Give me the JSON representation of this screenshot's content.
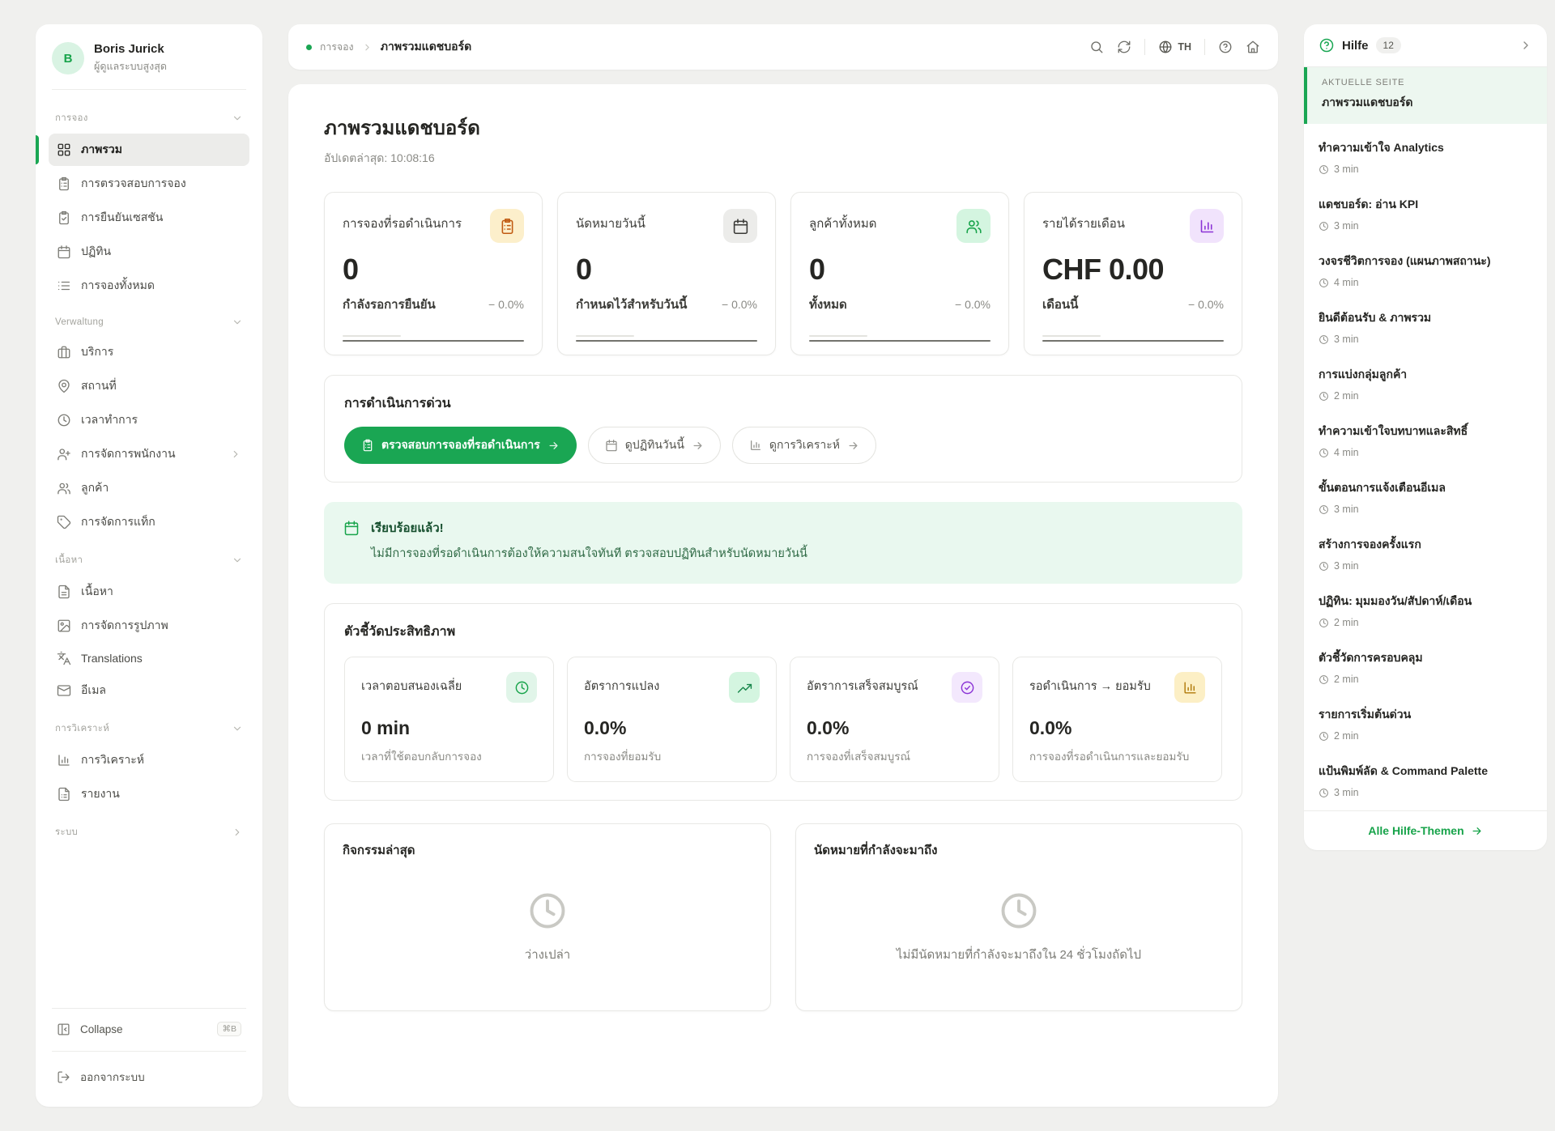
{
  "colors": {
    "accent": "#1aa653",
    "page_bg": "#f0f0ee",
    "banner_bg": "#e9f8ef",
    "banner_text": "#2f6a45"
  },
  "sidebar": {
    "user": {
      "initial": "B",
      "name": "Boris Jurick",
      "role": "ผู้ดูแลระบบสูงสุด"
    },
    "sections": [
      {
        "label": "การจอง",
        "chevron": "down",
        "items": [
          {
            "icon": "grid",
            "label": "ภาพรวม",
            "active": true
          },
          {
            "icon": "clipboard-list",
            "label": "การตรวจสอบการจอง"
          },
          {
            "icon": "clipboard-check",
            "label": "การยืนยันเซสชัน"
          },
          {
            "icon": "calendar",
            "label": "ปฏิทิน"
          },
          {
            "icon": "list",
            "label": "การจองทั้งหมด"
          }
        ]
      },
      {
        "label": "Verwaltung",
        "chevron": "down",
        "items": [
          {
            "icon": "briefcase",
            "label": "บริการ"
          },
          {
            "icon": "map-pin",
            "label": "สถานที่"
          },
          {
            "icon": "clock",
            "label": "เวลาทำการ"
          },
          {
            "icon": "user-plus",
            "label": "การจัดการพนักงาน",
            "trailing": "chevron-right"
          },
          {
            "icon": "users",
            "label": "ลูกค้า"
          },
          {
            "icon": "tag",
            "label": "การจัดการแท็ก"
          }
        ]
      },
      {
        "label": "เนื้อหา",
        "chevron": "down",
        "items": [
          {
            "icon": "file-text",
            "label": "เนื้อหา"
          },
          {
            "icon": "image",
            "label": "การจัดการรูปภาพ"
          },
          {
            "icon": "languages",
            "label": "Translations"
          },
          {
            "icon": "mail",
            "label": "อีเมล"
          }
        ]
      },
      {
        "label": "การวิเคราะห์",
        "chevron": "down",
        "items": [
          {
            "icon": "bar-chart",
            "label": "การวิเคราะห์"
          },
          {
            "icon": "file-report",
            "label": "รายงาน"
          }
        ]
      },
      {
        "label": "ระบบ",
        "chevron": "right",
        "items": []
      }
    ],
    "collapse_label": "Collapse",
    "collapse_shortcut": "⌘B",
    "logout_label": "ออกจากระบบ"
  },
  "topbar": {
    "breadcrumb_root": "การจอง",
    "breadcrumb_current": "ภาพรวมแดชบอร์ด",
    "language": "TH"
  },
  "page": {
    "title": "ภาพรวมแดชบอร์ด",
    "updated": "อัปเดตล่าสุด: 10:08:16"
  },
  "stats": {
    "cards": [
      {
        "title": "การจองที่รอดำเนินการ",
        "icon": "clipboard-list",
        "icon_bg": "#fcefcb",
        "icon_color": "#c05a11",
        "value": "0",
        "foot_label": "กำลังรอการยืนยัน",
        "delta": "− 0.0%"
      },
      {
        "title": "นัดหมายวันนี้",
        "icon": "calendar",
        "icon_bg": "#ececea",
        "icon_color": "#3a3a37",
        "value": "0",
        "foot_label": "กำหนดไว้สำหรับวันนี้",
        "delta": "− 0.0%"
      },
      {
        "title": "ลูกค้าทั้งหมด",
        "icon": "users",
        "icon_bg": "#d4f5e0",
        "icon_color": "#17a34a",
        "value": "0",
        "foot_label": "ทั้งหมด",
        "delta": "− 0.0%"
      },
      {
        "title": "รายได้รายเดือน",
        "icon": "bar-chart",
        "icon_bg": "#f1e3fc",
        "icon_color": "#8b33d6",
        "value": "CHF 0.00",
        "foot_label": "เดือนนี้",
        "delta": "− 0.0%"
      }
    ]
  },
  "quick_actions": {
    "title": "การดำเนินการด่วน",
    "primary": {
      "icon": "clipboard-list",
      "label": "ตรวจสอบการจองที่รอดำเนินการ"
    },
    "secondary": [
      {
        "icon": "calendar",
        "label": "ดูปฏิทินวันนี้"
      },
      {
        "icon": "bar-chart",
        "label": "ดูการวิเคราะห์"
      }
    ]
  },
  "banner": {
    "title": "เรียบร้อยแล้ว!",
    "text": "ไม่มีการจองที่รอดำเนินการต้องให้ความสนใจทันที ตรวจสอบปฏิทินสำหรับนัดหมายวันนี้"
  },
  "metrics": {
    "title": "ตัวชี้วัดประสิทธิภาพ",
    "cards": [
      {
        "title": "เวลาตอบสนองเฉลี่ย",
        "icon": "clock",
        "icon_bg": "#e1f5e9",
        "icon_color": "#17a34a",
        "value": "0 min",
        "sub": "เวลาที่ใช้ตอบกลับการจอง"
      },
      {
        "title": "อัตราการแปลง",
        "icon": "trending-up",
        "icon_bg": "#d4f5e0",
        "icon_color": "#17864a",
        "value": "0.0%",
        "sub": "การจองที่ยอมรับ"
      },
      {
        "title": "อัตราการเสร็จสมบูรณ์",
        "icon": "check-circle",
        "icon_bg": "#f3e8fd",
        "icon_color": "#8b33d6",
        "value": "0.0%",
        "sub": "การจองที่เสร็จสมบูรณ์"
      },
      {
        "title": "รอดำเนินการ → ยอมรับ",
        "icon": "bar-chart",
        "icon_bg": "#fcefc5",
        "icon_color": "#b07909",
        "value": "0.0%",
        "sub": "การจองที่รอดำเนินการและยอมรับ"
      }
    ]
  },
  "activity": {
    "title": "กิจกรรมล่าสุด",
    "empty": "ว่างเปล่า"
  },
  "upcoming": {
    "title": "นัดหมายที่กำลังจะมาถึง",
    "empty": "ไม่มีนัดหมายที่กำลังจะมาถึงใน 24 ชั่วโมงถัดไป"
  },
  "help": {
    "title": "Hilfe",
    "count": "12",
    "current_label": "AKTUELLE SEITE",
    "current_page": "ภาพรวมแดชบอร์ด",
    "topics": [
      {
        "title": "ทำความเข้าใจ Analytics",
        "duration": "3 min"
      },
      {
        "title": "แดชบอร์ด: อ่าน KPI",
        "duration": "3 min"
      },
      {
        "title": "วงจรชีวิตการจอง (แผนภาพสถานะ)",
        "duration": "4 min"
      },
      {
        "title": "ยินดีต้อนรับ & ภาพรวม",
        "duration": "3 min"
      },
      {
        "title": "การแบ่งกลุ่มลูกค้า",
        "duration": "2 min"
      },
      {
        "title": "ทำความเข้าใจบทบาทและสิทธิ์",
        "duration": "4 min"
      },
      {
        "title": "ขั้นตอนการแจ้งเตือนอีเมล",
        "duration": "3 min"
      },
      {
        "title": "สร้างการจองครั้งแรก",
        "duration": "3 min"
      },
      {
        "title": "ปฏิทิน: มุมมองวัน/สัปดาห์/เดือน",
        "duration": "2 min"
      },
      {
        "title": "ตัวชี้วัดการครอบคลุม",
        "duration": "2 min"
      },
      {
        "title": "รายการเริ่มต้นด่วน",
        "duration": "2 min"
      },
      {
        "title": "แป้นพิมพ์ลัด & Command Palette",
        "duration": "3 min"
      }
    ],
    "footer": "Alle Hilfe-Themen"
  }
}
